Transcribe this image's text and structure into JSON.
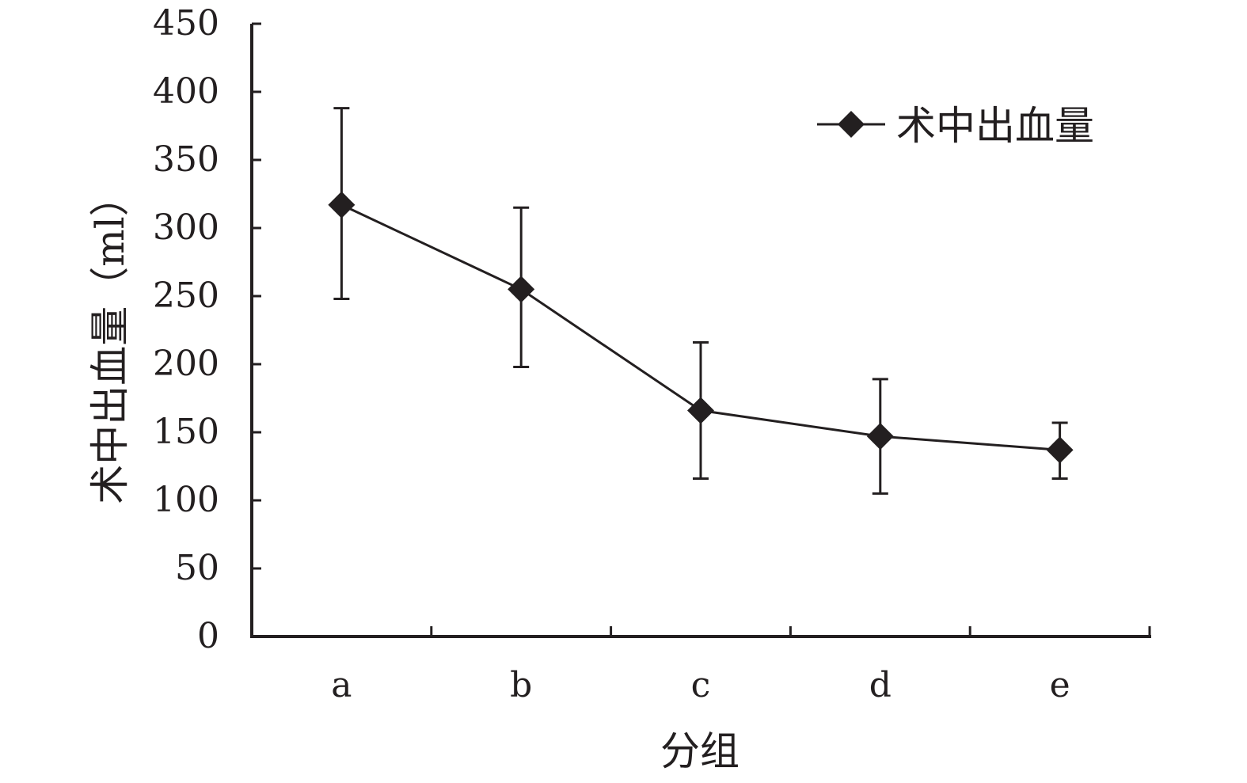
{
  "chart_data": {
    "type": "line",
    "categories": [
      "a",
      "b",
      "c",
      "d",
      "e"
    ],
    "series": [
      {
        "name": "术中出血量",
        "values": [
          317,
          255,
          166,
          147,
          137
        ],
        "error_upper": [
          388,
          315,
          216,
          189,
          157
        ],
        "error_lower": [
          248,
          198,
          116,
          105,
          116
        ],
        "marker": "diamond",
        "color": "#231f20"
      }
    ],
    "xlabel": "分组",
    "ylabel": "术中出血量（ml）",
    "ylim": [
      0,
      450
    ],
    "yticks": [
      "0",
      "50",
      "100",
      "150",
      "200",
      "250",
      "300",
      "350",
      "400",
      "450"
    ],
    "grid": false,
    "legend": "top-right"
  }
}
